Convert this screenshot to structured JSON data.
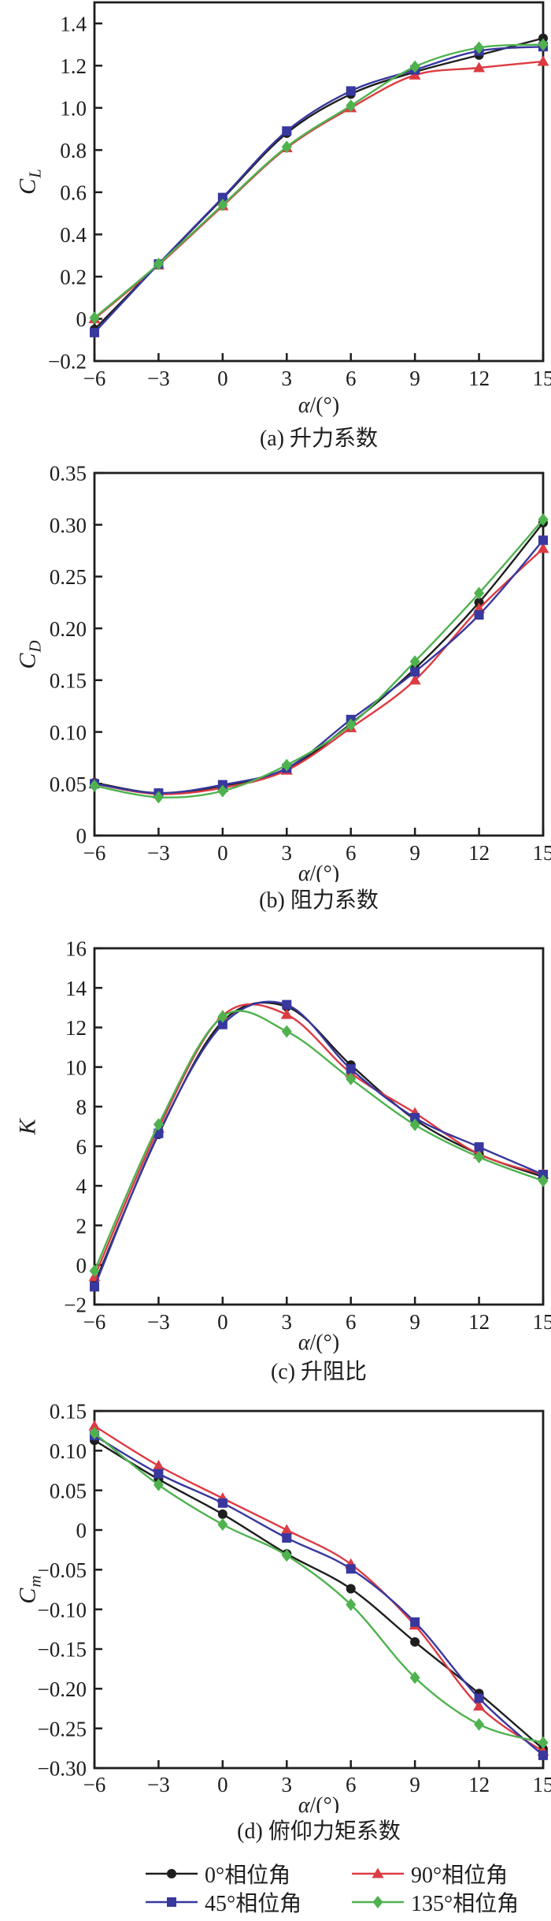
{
  "legend": {
    "items": [
      {
        "label": "0°相位角",
        "color": "#1e1e1e",
        "marker": "circle"
      },
      {
        "label": "90°相位角",
        "color": "#dd3b43",
        "marker": "triangle"
      },
      {
        "label": "45°相位角",
        "color": "#38389e",
        "marker": "square"
      },
      {
        "label": "135°相位角",
        "color": "#4fb24f",
        "marker": "diamond"
      }
    ]
  },
  "chart_data": [
    {
      "id": "a",
      "type": "line",
      "caption": "(a) 升力系数",
      "ylabel_main": "C",
      "ylabel_sub": "L",
      "xlabel": "α/(°)",
      "xlim": [
        -6,
        15
      ],
      "ylim": [
        -0.2,
        1.5
      ],
      "grid": false,
      "xticks": [
        -6,
        -3,
        0,
        3,
        6,
        9,
        12,
        15
      ],
      "xtick_labels": [
        "−6",
        "−3",
        "0",
        "3",
        "6",
        "9",
        "12",
        "15"
      ],
      "yticks": [
        -0.2,
        0,
        0.2,
        0.4,
        0.6,
        0.8,
        1.0,
        1.2,
        1.4
      ],
      "ytick_labels": [
        "−0.2",
        "0",
        "0.2",
        "0.4",
        "0.6",
        "0.8",
        "1.0",
        "1.2",
        "1.4"
      ],
      "x": [
        -6,
        -3,
        0,
        3,
        6,
        9,
        12,
        15
      ],
      "series": [
        {
          "name": "0°相位角",
          "color": "#1e1e1e",
          "marker": "circle",
          "values": [
            -0.05,
            0.26,
            0.57,
            0.88,
            1.065,
            1.17,
            1.25,
            1.33
          ]
        },
        {
          "name": "90°相位角",
          "color": "#dd3b43",
          "marker": "triangle",
          "values": [
            0.0,
            0.255,
            0.535,
            0.81,
            1.0,
            1.155,
            1.19,
            1.22
          ]
        },
        {
          "name": "45°相位角",
          "color": "#38389e",
          "marker": "square",
          "values": [
            -0.065,
            0.26,
            0.575,
            0.89,
            1.08,
            1.18,
            1.27,
            1.29
          ]
        },
        {
          "name": "135°相位角",
          "color": "#4fb24f",
          "marker": "diamond",
          "values": [
            0.005,
            0.26,
            0.54,
            0.815,
            1.01,
            1.195,
            1.285,
            1.3
          ]
        }
      ]
    },
    {
      "id": "b",
      "type": "line",
      "caption": "(b) 阻力系数",
      "ylabel_main": "C",
      "ylabel_sub": "D",
      "xlabel": "α/(°)",
      "xlim": [
        -6,
        15
      ],
      "ylim": [
        0,
        0.35
      ],
      "grid": false,
      "xticks": [
        -6,
        -3,
        0,
        3,
        6,
        9,
        12,
        15
      ],
      "xtick_labels": [
        "−6",
        "−3",
        "0",
        "3",
        "6",
        "9",
        "12",
        "15"
      ],
      "yticks": [
        0,
        0.05,
        0.1,
        0.15,
        0.2,
        0.25,
        0.3,
        0.35
      ],
      "ytick_labels": [
        "0",
        "0.05",
        "0.10",
        "0.15",
        "0.20",
        "0.25",
        "0.30",
        "0.35"
      ],
      "x": [
        -6,
        -3,
        0,
        3,
        6,
        9,
        12,
        15
      ],
      "series": [
        {
          "name": "0°相位角",
          "color": "#1e1e1e",
          "marker": "circle",
          "values": [
            0.051,
            0.041,
            0.048,
            0.064,
            0.108,
            0.161,
            0.225,
            0.302
          ]
        },
        {
          "name": "90°相位角",
          "color": "#dd3b43",
          "marker": "triangle",
          "values": [
            0.05,
            0.04,
            0.046,
            0.063,
            0.104,
            0.15,
            0.219,
            0.277
          ]
        },
        {
          "name": "45°相位角",
          "color": "#38389e",
          "marker": "square",
          "values": [
            0.05,
            0.041,
            0.049,
            0.065,
            0.112,
            0.158,
            0.213,
            0.285
          ]
        },
        {
          "name": "135°相位角",
          "color": "#4fb24f",
          "marker": "diamond",
          "values": [
            0.048,
            0.037,
            0.043,
            0.068,
            0.107,
            0.168,
            0.234,
            0.305
          ]
        }
      ]
    },
    {
      "id": "c",
      "type": "line",
      "caption": "(c) 升阻比",
      "ylabel_main": "K",
      "ylabel_sub": "",
      "xlabel": "α/(°)",
      "xlim": [
        -6,
        15
      ],
      "ylim": [
        -2,
        16
      ],
      "grid": false,
      "xticks": [
        -6,
        -3,
        0,
        3,
        6,
        9,
        12,
        15
      ],
      "xtick_labels": [
        "−6",
        "−3",
        "0",
        "3",
        "6",
        "9",
        "12",
        "15"
      ],
      "yticks": [
        -2,
        0,
        2,
        4,
        6,
        8,
        10,
        12,
        14,
        16
      ],
      "ytick_labels": [
        "−2",
        "0",
        "2",
        "4",
        "6",
        "8",
        "10",
        "12",
        "14",
        "16"
      ],
      "x": [
        -6,
        -3,
        0,
        3,
        6,
        9,
        12,
        15
      ],
      "series": [
        {
          "name": "0°相位角",
          "color": "#1e1e1e",
          "marker": "circle",
          "values": [
            -0.95,
            6.6,
            12.3,
            13.05,
            10.1,
            7.35,
            5.6,
            4.45
          ]
        },
        {
          "name": "90°相位角",
          "color": "#dd3b43",
          "marker": "triangle",
          "values": [
            -0.6,
            6.9,
            12.6,
            12.65,
            9.7,
            7.68,
            5.6,
            4.57
          ]
        },
        {
          "name": "45°相位角",
          "color": "#38389e",
          "marker": "square",
          "values": [
            -1.1,
            6.65,
            12.15,
            13.15,
            9.9,
            7.44,
            5.96,
            4.57
          ]
        },
        {
          "name": "135°相位角",
          "color": "#4fb24f",
          "marker": "diamond",
          "values": [
            -0.3,
            7.1,
            12.55,
            11.8,
            9.4,
            7.08,
            5.45,
            4.25
          ]
        }
      ]
    },
    {
      "id": "d",
      "type": "line",
      "caption": "(d) 俯仰力矩系数",
      "ylabel_main": "C",
      "ylabel_sub": "m",
      "xlabel": "α/(°)",
      "xlim": [
        -6,
        15
      ],
      "ylim": [
        -0.3,
        0.15
      ],
      "grid": false,
      "xticks": [
        -6,
        -3,
        0,
        3,
        6,
        9,
        12,
        15
      ],
      "xtick_labels": [
        "−6",
        "−3",
        "0",
        "3",
        "6",
        "9",
        "12",
        "15"
      ],
      "yticks": [
        -0.3,
        -0.25,
        -0.2,
        -0.15,
        -0.1,
        -0.05,
        0,
        0.05,
        0.1,
        0.15
      ],
      "ytick_labels": [
        "−0.30",
        "−0.25",
        "−0.20",
        "−0.15",
        "−0.10",
        "−0.05",
        "0",
        "0.05",
        "0.10",
        "0.15"
      ],
      "x": [
        -6,
        -3,
        0,
        3,
        6,
        9,
        12,
        15
      ],
      "series": [
        {
          "name": "0°相位角",
          "color": "#1e1e1e",
          "marker": "circle",
          "values": [
            0.113,
            0.064,
            0.02,
            -0.03,
            -0.074,
            -0.141,
            -0.206,
            -0.276
          ]
        },
        {
          "name": "90°相位角",
          "color": "#dd3b43",
          "marker": "triangle",
          "values": [
            0.131,
            0.081,
            0.04,
            0.0,
            -0.043,
            -0.12,
            -0.222,
            -0.279
          ]
        },
        {
          "name": "45°相位角",
          "color": "#38389e",
          "marker": "square",
          "values": [
            0.119,
            0.071,
            0.034,
            -0.01,
            -0.049,
            -0.116,
            -0.212,
            -0.284
          ]
        },
        {
          "name": "135°相位角",
          "color": "#4fb24f",
          "marker": "diamond",
          "values": [
            0.122,
            0.057,
            0.007,
            -0.032,
            -0.094,
            -0.186,
            -0.245,
            -0.268
          ]
        }
      ]
    }
  ]
}
